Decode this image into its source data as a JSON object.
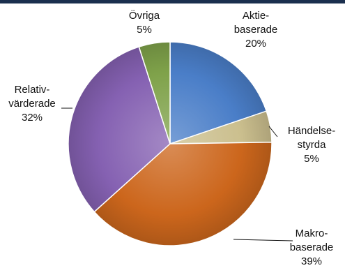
{
  "chart_data": {
    "type": "pie",
    "slices": [
      {
        "lines": [
          "Aktie-",
          "baserade",
          "20%"
        ],
        "value": 20,
        "color": "#4a7ec8"
      },
      {
        "lines": [
          "Händelse-",
          "styrda",
          "5%"
        ],
        "value": 5,
        "color": "#cbbf8e"
      },
      {
        "lines": [
          "Makro-",
          "baserade",
          "39%"
        ],
        "value": 39,
        "color": "#cc661c"
      },
      {
        "lines": [
          "Relativ-",
          "värderade",
          "32%"
        ],
        "value": 32,
        "color": "#8561b2"
      },
      {
        "lines": [
          "Övriga",
          "5%"
        ],
        "value": 5,
        "color": "#7fa24a"
      }
    ]
  }
}
